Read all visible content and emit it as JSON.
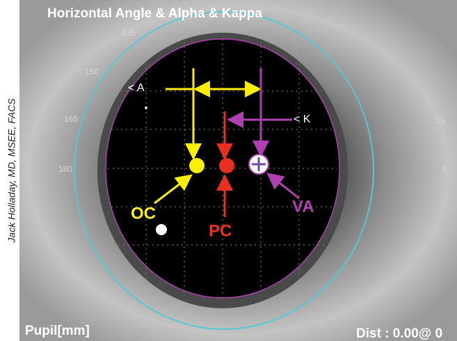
{
  "header": {
    "title": "Horizontal Angle & Alpha & Kappa"
  },
  "credit": "Jack Holladay, MD, MSEE, FACS",
  "scale_labels": [
    "135",
    "150",
    "165",
    "180",
    "15",
    "0"
  ],
  "annotations": {
    "a_marker": "< A",
    "k_marker": "< K",
    "oc": "OC",
    "pc": "PC",
    "va": "VA"
  },
  "footer": {
    "left": "Pupil[mm]",
    "right": "Dist : 0.00@ 0"
  }
}
